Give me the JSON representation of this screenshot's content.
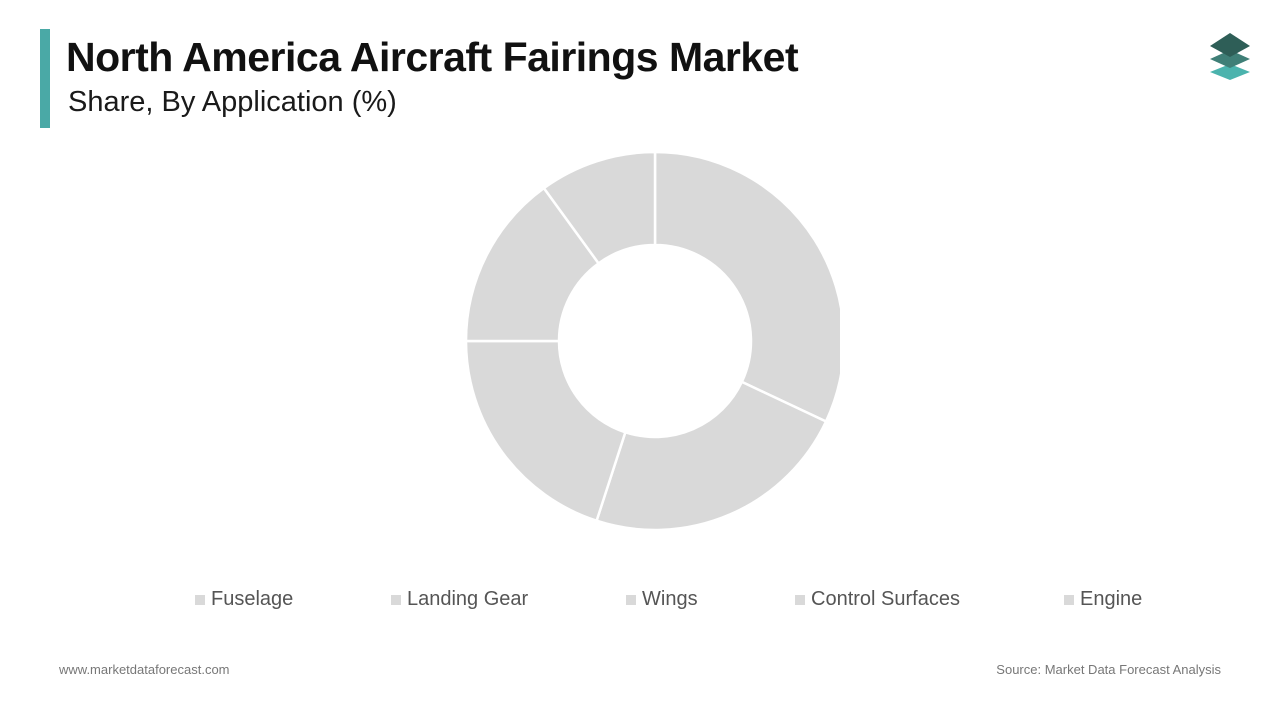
{
  "header": {
    "title": "North America Aircraft Fairings Market",
    "subtitle": "Share, By Application (%)"
  },
  "logo": {
    "icon": "stacked-layers-logo-icon",
    "colors": [
      "#2e5e57",
      "#3f7f77",
      "#4bb3ad"
    ]
  },
  "chart_data": {
    "type": "pie",
    "style": "donut",
    "categories": [
      "Fuselage",
      "Landing Gear",
      "Wings",
      "Control Surfaces",
      "Engine"
    ],
    "values": [
      32,
      23,
      20,
      15,
      10
    ],
    "unit": "%",
    "slice_color": "#d9d9d9",
    "separator_color": "#ffffff",
    "legend_position": "bottom"
  },
  "footer": {
    "website": "www.marketdataforecast.com",
    "source": "Source: Market Data Forecast Analysis"
  },
  "colors": {
    "accent": "#4aa9a6",
    "title": "#111111",
    "legend_text": "#555555"
  }
}
